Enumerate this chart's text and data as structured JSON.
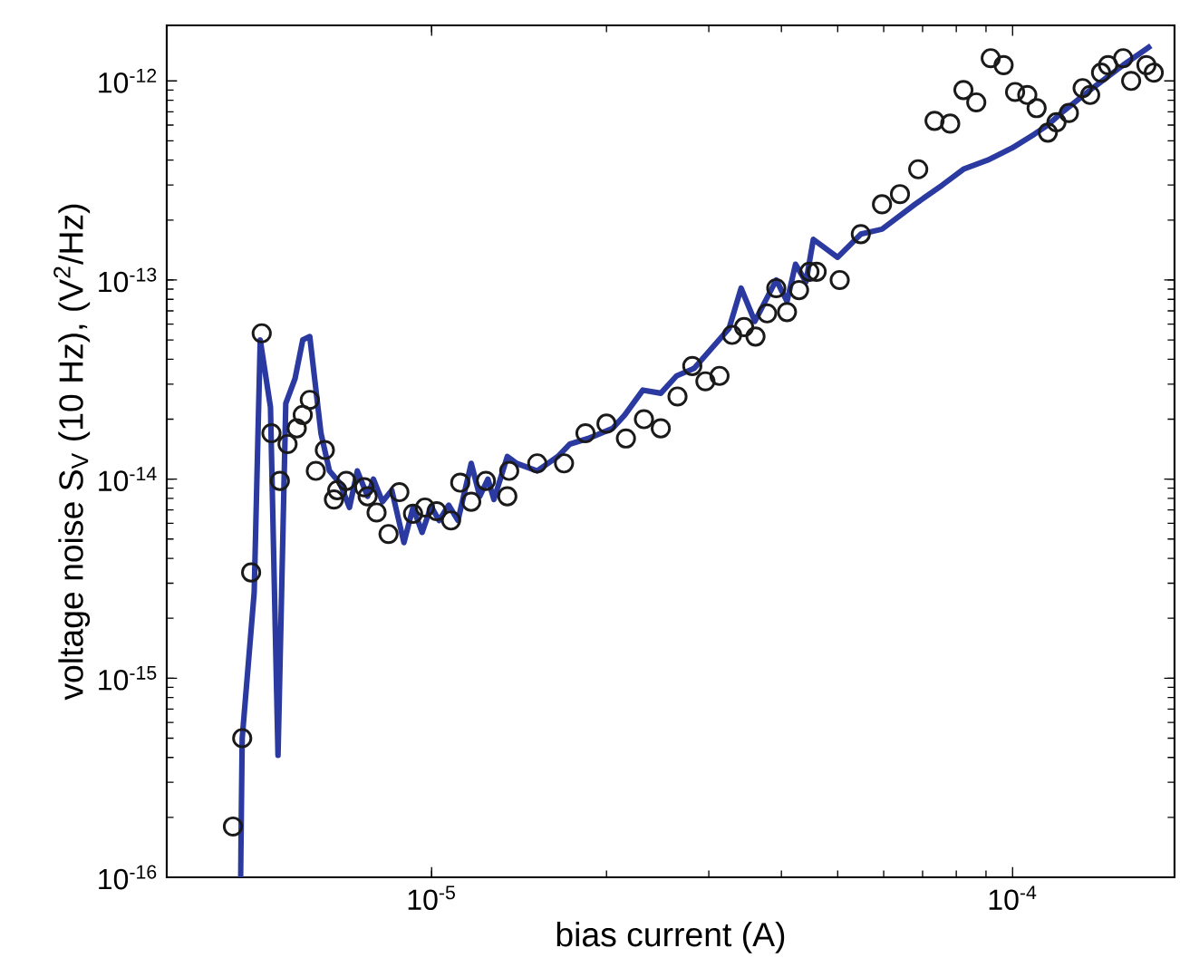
{
  "chart_data": {
    "type": "scatter",
    "xlabel": "bias current (A)",
    "ylabel": "voltage noise S$_{V}$ (10 Hz), (V$^{2}$/Hz)",
    "log": "xy",
    "xlim": [
      3.5e-06,
      0.00019
    ],
    "ylim": [
      1e-16,
      1.9e-12
    ],
    "xticks": [
      {
        "value": 1e-05,
        "label": "10$^{-5}$"
      },
      {
        "value": 0.0001,
        "label": "10$^{-4}$"
      }
    ],
    "yticks": [
      {
        "value": 1e-16,
        "label": "10$^{-16}$"
      },
      {
        "value": 1e-15,
        "label": "10$^{-15}$"
      },
      {
        "value": 1e-14,
        "label": "10$^{-14}$"
      },
      {
        "value": 1e-13,
        "label": "10$^{-13}$"
      },
      {
        "value": 1e-12,
        "label": "10$^{-12}$"
      }
    ],
    "series": [
      {
        "color": "#1a1a1a",
        "marker": "circle",
        "x": [
          4.55e-06,
          4.72e-06,
          4.89e-06,
          5.1e-06,
          5.3e-06,
          5.48e-06,
          5.65e-06,
          5.86e-06,
          6e-06,
          6.17e-06,
          6.32e-06,
          6.55e-06,
          6.79e-06,
          6.88e-06,
          7.13e-06,
          7.66e-06,
          7.76e-06,
          8.04e-06,
          8.43e-06,
          8.8e-06,
          9.29e-06,
          9.74e-06,
          1.02e-05,
          1.08e-05,
          1.12e-05,
          1.17e-05,
          1.24e-05,
          1.35e-05,
          1.36e-05,
          1.52e-05,
          1.69e-05,
          1.84e-05,
          2e-05,
          2.16e-05,
          2.32e-05,
          2.48e-05,
          2.65e-05,
          2.81e-05,
          2.96e-05,
          3.13e-05,
          3.29e-05,
          3.45e-05,
          3.61e-05,
          3.78e-05,
          3.92e-05,
          4.09e-05,
          4.29e-05,
          4.47e-05,
          4.6e-05,
          5.04e-05,
          5.48e-05,
          5.96e-05,
          6.4e-05,
          6.88e-05,
          7.34e-05,
          7.81e-05,
          8.23e-05,
          8.66e-05,
          9.17e-05,
          9.65e-05,
          0.000101,
          0.000106,
          0.00011,
          0.000115,
          0.000119,
          0.000125,
          0.000132,
          0.000136,
          0.000142,
          0.000146,
          0.000155,
          0.00016,
          0.00017,
          0.000175
        ],
        "values": [
          1.8e-16,
          5e-16,
          3.4e-15,
          5.4e-14,
          1.7e-14,
          9.8e-15,
          1.5e-14,
          1.8e-14,
          2.1e-14,
          2.5e-14,
          1.1e-14,
          1.4e-14,
          7.9e-15,
          8.8e-15,
          9.8e-15,
          9.1e-15,
          8.2e-15,
          6.8e-15,
          5.3e-15,
          8.6e-15,
          6.7e-15,
          7.2e-15,
          6.9e-15,
          6.2e-15,
          9.6e-15,
          7.7e-15,
          9.8e-15,
          8.2e-15,
          1.1e-14,
          1.2e-14,
          1.2e-14,
          1.7e-14,
          1.9e-14,
          1.6e-14,
          2e-14,
          1.8e-14,
          2.6e-14,
          3.7e-14,
          3.1e-14,
          3.3e-14,
          5.3e-14,
          5.8e-14,
          5.2e-14,
          6.8e-14,
          9.1e-14,
          6.9e-14,
          8.9e-14,
          1.1e-13,
          1.1e-13,
          1e-13,
          1.7e-13,
          2.4e-13,
          2.7e-13,
          3.6e-13,
          6.3e-13,
          6.1e-13,
          9e-13,
          7.8e-13,
          1.3e-12,
          1.2e-12,
          8.8e-13,
          8.5e-13,
          7.3e-13,
          5.5e-13,
          6.2e-13,
          6.9e-13,
          9.2e-13,
          8.5e-13,
          1.1e-12,
          1.2e-12,
          1.3e-12,
          1e-12,
          1.2e-12,
          1.1e-12
        ]
      },
      {
        "type": "line",
        "color": "#2b3aa0",
        "marker": "none",
        "line_style": "solid",
        "x": [
          4.69e-06,
          4.72e-06,
          4.95e-06,
          5.07e-06,
          5.28e-06,
          5.44e-06,
          5.61e-06,
          5.82e-06,
          6e-06,
          6.17e-06,
          6.45e-06,
          6.67e-06,
          6.96e-06,
          7.22e-06,
          7.45e-06,
          7.76e-06,
          7.94e-06,
          8.23e-06,
          8.54e-06,
          8.96e-06,
          9.29e-06,
          9.63e-06,
          9.98e-06,
          1.03e-05,
          1.07e-05,
          1.11e-05,
          1.17e-05,
          1.21e-05,
          1.25e-05,
          1.28e-05,
          1.35e-05,
          1.4e-05,
          1.52e-05,
          1.65e-05,
          1.73e-05,
          1.86e-05,
          2.05e-05,
          2.15e-05,
          2.31e-05,
          2.48e-05,
          2.64e-05,
          2.83e-05,
          3.25e-05,
          3.41e-05,
          3.6e-05,
          3.92e-05,
          4.09e-05,
          4.23e-05,
          4.41e-05,
          4.54e-05,
          5e-05,
          5.48e-05,
          5.96e-05,
          6.79e-05,
          7.57e-05,
          8.23e-05,
          9.06e-05,
          9.98e-05,
          0.000109,
          0.000115,
          0.000122,
          0.000138,
          0.000155,
          0.000173
        ],
        "values": [
          1e-16,
          5e-16,
          2.7e-15,
          5e-14,
          2.3e-14,
          4.1e-16,
          2.4e-14,
          3.2e-14,
          5e-14,
          5.2e-14,
          1.7e-14,
          1.1e-14,
          9.5e-15,
          7.2e-15,
          1.1e-14,
          8.2e-15,
          1e-14,
          7.7e-15,
          8.8e-15,
          4.8e-15,
          7.2e-15,
          5.4e-15,
          7.3e-15,
          6.2e-15,
          7.4e-15,
          6.2e-15,
          1.2e-14,
          8.2e-15,
          1e-14,
          7.9e-15,
          1.3e-14,
          1.2e-14,
          1.1e-14,
          1.3e-14,
          1.5e-14,
          1.6e-14,
          1.8e-14,
          2.1e-14,
          2.8e-14,
          2.7e-14,
          3.3e-14,
          3.6e-14,
          5.7e-14,
          9.1e-14,
          6.2e-14,
          1e-13,
          7.8e-14,
          1.2e-13,
          9.8e-14,
          1.6e-13,
          1.3e-13,
          1.7e-13,
          1.8e-13,
          2.4e-13,
          3e-13,
          3.6e-13,
          4e-13,
          4.6e-13,
          5.4e-13,
          6e-13,
          7e-13,
          9.3e-13,
          1.2e-12,
          1.5e-12
        ]
      }
    ]
  }
}
